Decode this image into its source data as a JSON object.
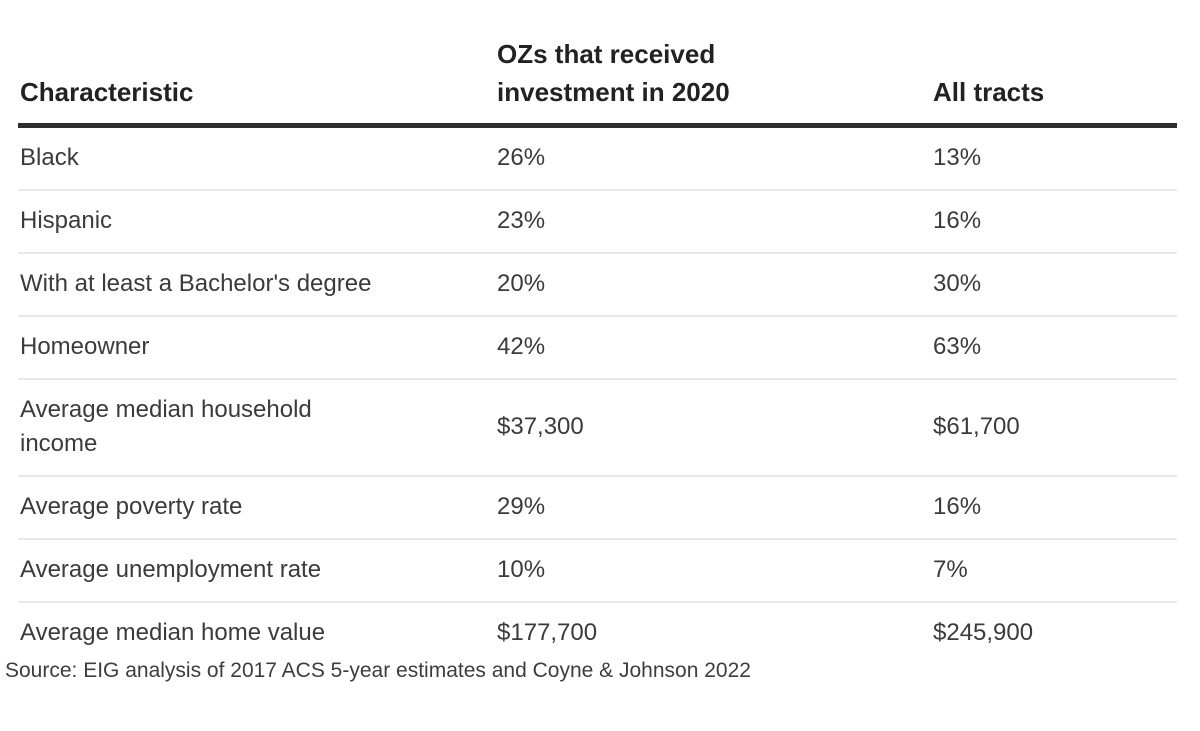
{
  "chart_data": {
    "type": "table",
    "columns": [
      {
        "label": "Characteristic"
      },
      {
        "label": "OZs that received investment in 2020"
      },
      {
        "label": "All tracts"
      }
    ],
    "rows": [
      {
        "characteristic": "Black",
        "oz_invested_2020": "26%",
        "all_tracts": "13%"
      },
      {
        "characteristic": "Hispanic",
        "oz_invested_2020": "23%",
        "all_tracts": "16%"
      },
      {
        "characteristic": "With at least a Bachelor's degree",
        "oz_invested_2020": "20%",
        "all_tracts": "30%"
      },
      {
        "characteristic": "Homeowner",
        "oz_invested_2020": "42%",
        "all_tracts": "63%"
      },
      {
        "characteristic": "Average median household income",
        "oz_invested_2020": "$37,300",
        "all_tracts": "$61,700"
      },
      {
        "characteristic": "Average poverty rate",
        "oz_invested_2020": "29%",
        "all_tracts": "16%"
      },
      {
        "characteristic": "Average unemployment rate",
        "oz_invested_2020": "10%",
        "all_tracts": "7%"
      },
      {
        "characteristic": "Average median home value",
        "oz_invested_2020": "$177,700",
        "all_tracts": "$245,900"
      }
    ],
    "source_note": "Source: EIG analysis of 2017 ACS 5-year estimates and Coyne & Johnson 2022",
    "layout": {
      "header_rule_color": "#2e2e2e",
      "row_divider_color": "#e9e9e9",
      "header_text_color": "#222222",
      "body_text_color": "#3b3b3b",
      "background_color": "#ffffff"
    }
  }
}
